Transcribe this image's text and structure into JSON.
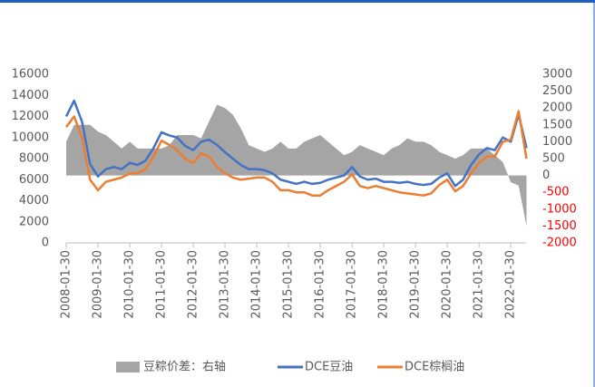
{
  "chart_data": {
    "type": "line",
    "x": [
      "2008-01-30",
      "2008-04-30",
      "2008-07-30",
      "2008-10-30",
      "2009-01-30",
      "2009-04-30",
      "2009-07-30",
      "2009-10-30",
      "2010-01-30",
      "2010-04-30",
      "2010-07-30",
      "2010-10-30",
      "2011-01-30",
      "2011-04-30",
      "2011-07-30",
      "2011-10-30",
      "2012-01-30",
      "2012-04-30",
      "2012-07-30",
      "2012-10-30",
      "2013-01-30",
      "2013-04-30",
      "2013-07-30",
      "2013-10-30",
      "2014-01-30",
      "2014-04-30",
      "2014-07-30",
      "2014-10-30",
      "2015-01-30",
      "2015-04-30",
      "2015-07-30",
      "2015-10-30",
      "2016-01-30",
      "2016-04-30",
      "2016-07-30",
      "2016-10-30",
      "2017-01-30",
      "2017-04-30",
      "2017-07-30",
      "2017-10-30",
      "2018-01-30",
      "2018-04-30",
      "2018-07-30",
      "2018-10-30",
      "2019-01-30",
      "2019-04-30",
      "2019-07-30",
      "2019-10-30",
      "2020-01-30",
      "2020-04-30",
      "2020-07-30",
      "2020-10-30",
      "2021-01-30",
      "2021-04-30",
      "2021-07-30",
      "2021-10-30",
      "2022-01-30",
      "2022-04-30",
      "2022-07-30"
    ],
    "series": [
      {
        "name": "豆粽价差：右轴",
        "color": "#a5a5a5",
        "kind": "area",
        "axis": "y2",
        "values": [
          1000,
          1500,
          1500,
          1500,
          1300,
          1200,
          1000,
          800,
          1000,
          800,
          800,
          800,
          800,
          900,
          1200,
          1200,
          1200,
          1100,
          1600,
          2100,
          2000,
          1800,
          1400,
          900,
          800,
          700,
          800,
          1000,
          800,
          800,
          1000,
          1100,
          1200,
          1000,
          800,
          600,
          700,
          900,
          800,
          700,
          600,
          800,
          900,
          1100,
          1000,
          1000,
          900,
          700,
          600,
          500,
          600,
          800,
          800,
          800,
          600,
          400,
          -200,
          -300,
          -1500
        ]
      },
      {
        "name": "DCE豆油",
        "color": "#4472c4",
        "kind": "line",
        "values": [
          12000,
          13500,
          11500,
          7500,
          6300,
          7000,
          7200,
          7000,
          7600,
          7400,
          7800,
          9000,
          10500,
          10200,
          10000,
          9200,
          8800,
          9600,
          9800,
          9300,
          8600,
          8000,
          7400,
          7000,
          7000,
          6900,
          6600,
          6000,
          5800,
          5600,
          5800,
          5600,
          5700,
          6000,
          6200,
          6400,
          7200,
          6300,
          6000,
          6100,
          5800,
          5800,
          5700,
          5800,
          5600,
          5500,
          5600,
          6200,
          6600,
          5400,
          6000,
          7400,
          8400,
          9000,
          8800,
          10000,
          9600,
          12200,
          9000
        ]
      },
      {
        "name": "DCE棕榈油",
        "color": "#ed7d31",
        "kind": "line",
        "values": [
          11000,
          12000,
          10000,
          6000,
          5000,
          5800,
          6000,
          6200,
          6600,
          6600,
          7000,
          8200,
          9700,
          9300,
          8800,
          8000,
          7600,
          8500,
          8200,
          7200,
          6600,
          6200,
          6000,
          6100,
          6200,
          6200,
          5800,
          5000,
          5000,
          4800,
          4800,
          4500,
          4500,
          5000,
          5400,
          5800,
          6500,
          5400,
          5200,
          5400,
          5200,
          5000,
          4800,
          4700,
          4600,
          4500,
          4700,
          5500,
          6000,
          4900,
          5400,
          6600,
          7600,
          8200,
          8200,
          9600,
          9800,
          12500,
          8000
        ]
      }
    ],
    "xlim": [
      "2008-01-30",
      "2022-07-30"
    ],
    "xticks": [
      "2008-01-30",
      "2009-01-30",
      "2010-01-30",
      "2011-01-30",
      "2012-01-30",
      "2013-01-30",
      "2014-01-30",
      "2015-01-30",
      "2016-01-30",
      "2017-01-30",
      "2018-01-30",
      "2019-01-30",
      "2020-01-30",
      "2021-01-30",
      "2022-01-30"
    ],
    "ylim": [
      0,
      16000
    ],
    "yticks": [
      0,
      2000,
      4000,
      6000,
      8000,
      10000,
      12000,
      14000,
      16000
    ],
    "y2lim": [
      -2000,
      3000
    ],
    "y2ticks": [
      -2000,
      -1500,
      -1000,
      -500,
      0,
      500,
      1000,
      1500,
      2000,
      2500,
      3000
    ],
    "y2_negative_label_color": "#ff0000",
    "legend": "bottom"
  }
}
